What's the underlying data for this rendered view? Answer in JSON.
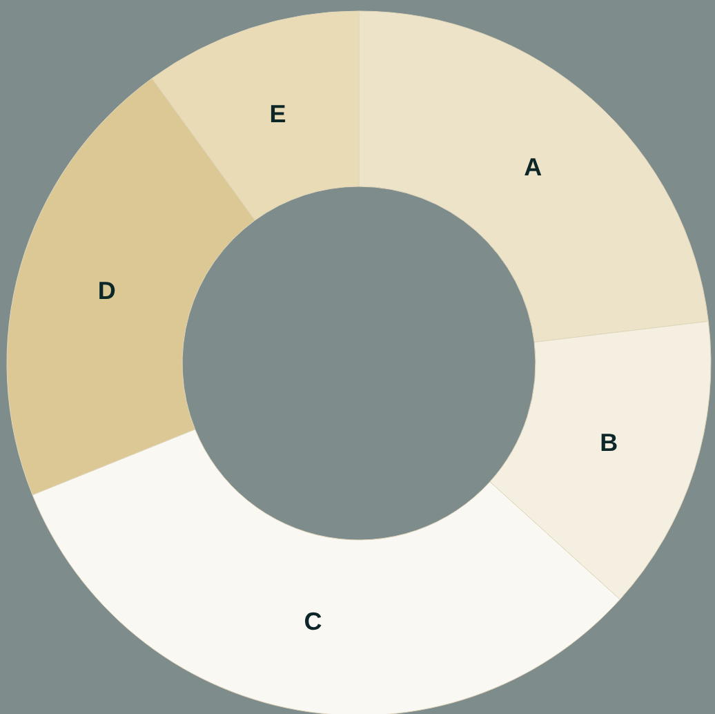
{
  "chart_data": {
    "type": "donut",
    "categories": [
      "A",
      "B",
      "C",
      "D",
      "E"
    ],
    "values": [
      23.1,
      13.6,
      32.2,
      21.1,
      10.0
    ],
    "colors": [
      "#ede3c8",
      "#f4efe0",
      "#faf8f2",
      "#dbc895",
      "#e8dbb5"
    ]
  }
}
